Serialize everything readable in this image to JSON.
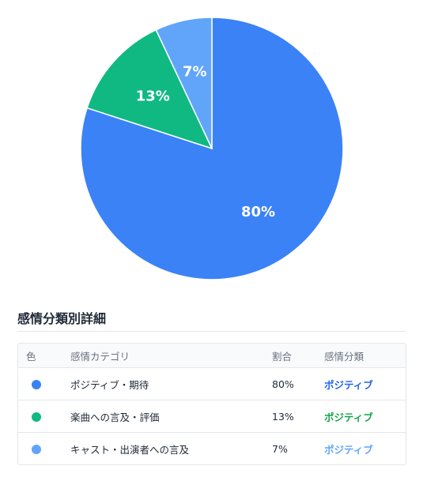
{
  "chart_data": {
    "type": "pie",
    "slices": [
      {
        "label": "80%",
        "value": 80,
        "color": "#3b82f6"
      },
      {
        "label": "13%",
        "value": 13,
        "color": "#10b981"
      },
      {
        "label": "7%",
        "value": 7,
        "color": "#60a5fa"
      }
    ]
  },
  "details": {
    "title": "感情分類別詳細",
    "headers": {
      "color": "色",
      "category": "感情カテゴリ",
      "ratio": "割合",
      "sentiment": "感情分類"
    },
    "rows": [
      {
        "color": "#3b82f6",
        "category": "ポジティブ・期待",
        "ratio": "80%",
        "sentiment": "ポジティブ",
        "sentiment_color": "#2563eb"
      },
      {
        "color": "#10b981",
        "category": "楽曲への言及・評価",
        "ratio": "13%",
        "sentiment": "ポジティブ",
        "sentiment_color": "#16a34a"
      },
      {
        "color": "#60a5fa",
        "category": "キャスト・出演者への言及",
        "ratio": "7%",
        "sentiment": "ポジティブ",
        "sentiment_color": "#60a5fa"
      }
    ]
  }
}
